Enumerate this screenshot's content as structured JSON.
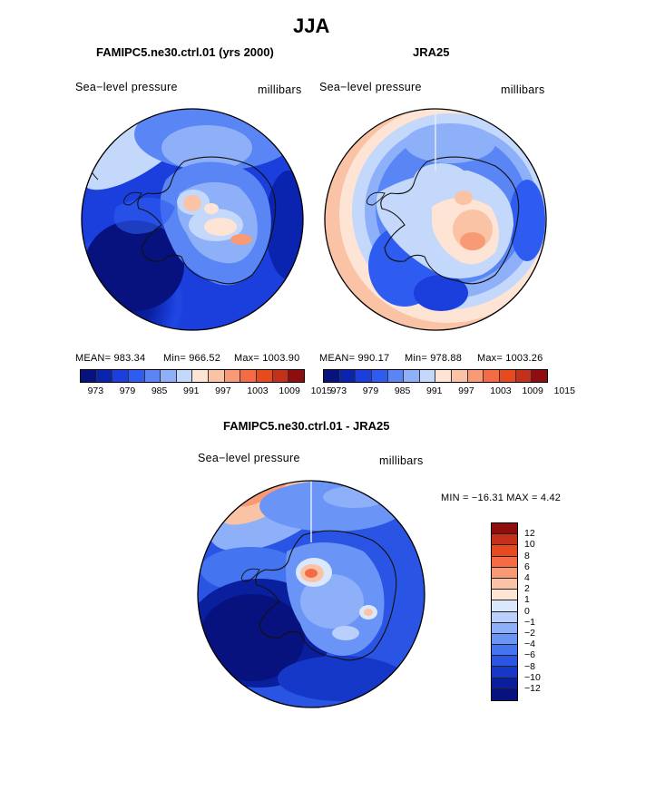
{
  "page": {
    "title": "JJA"
  },
  "panel1": {
    "title": "FAMIPC5.ne30.ctrl.01 (yrs 2000)",
    "left_label": "Sea−level pressure",
    "right_label": "millibars",
    "mean": "MEAN= 983.34",
    "min": "Min= 966.52",
    "max": "Max= 1003.90",
    "ticks": [
      "973",
      "979",
      "985",
      "991",
      "997",
      "1003",
      "1009",
      "1015"
    ]
  },
  "panel2": {
    "title": "JRA25",
    "left_label": "Sea−level pressure",
    "right_label": "millibars",
    "mean": "MEAN= 990.17",
    "min": "Min= 978.88",
    "max": "Max= 1003.26",
    "ticks": [
      "973",
      "979",
      "985",
      "991",
      "997",
      "1003",
      "1009",
      "1015"
    ]
  },
  "panel3": {
    "title": "FAMIPC5.ne30.ctrl.01 - JRA25",
    "left_label": "Sea−level pressure",
    "right_label": "millibars",
    "minmax": "MIN = −16.31  MAX =   4.42",
    "ticks": [
      "12",
      "10",
      "8",
      "6",
      "4",
      "2",
      "1",
      "0",
      "−1",
      "−2",
      "−4",
      "−6",
      "−8",
      "−10",
      "−12"
    ]
  },
  "colors": {
    "abs_scale": [
      "#07127e",
      "#0a24b0",
      "#1a3fdc",
      "#2e5cf0",
      "#5a86f5",
      "#8eb0f9",
      "#c4d8fc",
      "#fde4d4",
      "#fbc3a5",
      "#f99a76",
      "#f46b45",
      "#e84a20",
      "#c5301a",
      "#8f0d0d"
    ],
    "diff_scale": [
      "#8f0d0d",
      "#c5301a",
      "#e84a20",
      "#f46b45",
      "#f99a76",
      "#fbc3a5",
      "#fde4d4",
      "#dbe8fc",
      "#b8d0fb",
      "#8eb0f9",
      "#6a94f6",
      "#4474f0",
      "#2a55e4",
      "#1638c8",
      "#0a1f9e",
      "#07127e"
    ]
  }
}
